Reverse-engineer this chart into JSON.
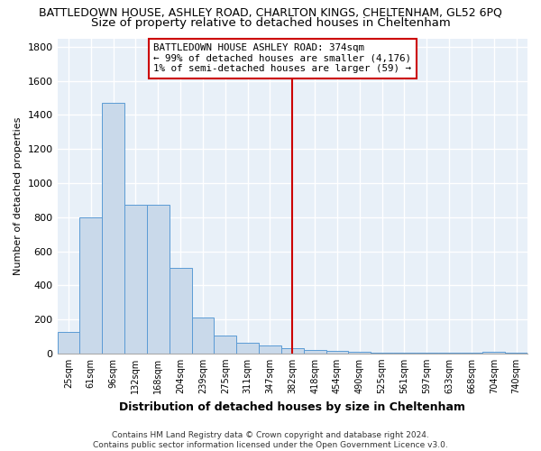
{
  "title": "BATTLEDOWN HOUSE, ASHLEY ROAD, CHARLTON KINGS, CHELTENHAM, GL52 6PQ",
  "subtitle": "Size of property relative to detached houses in Cheltenham",
  "xlabel": "Distribution of detached houses by size in Cheltenham",
  "ylabel": "Number of detached properties",
  "bar_labels": [
    "25sqm",
    "61sqm",
    "96sqm",
    "132sqm",
    "168sqm",
    "204sqm",
    "239sqm",
    "275sqm",
    "311sqm",
    "347sqm",
    "382sqm",
    "418sqm",
    "454sqm",
    "490sqm",
    "525sqm",
    "561sqm",
    "597sqm",
    "633sqm",
    "668sqm",
    "704sqm",
    "740sqm"
  ],
  "bar_values": [
    125,
    800,
    1470,
    875,
    875,
    500,
    210,
    105,
    65,
    45,
    30,
    20,
    15,
    8,
    5,
    5,
    5,
    5,
    5,
    10,
    5
  ],
  "bar_color": "#c9d9ea",
  "bar_edgecolor": "#5b9bd5",
  "annotation_text": "BATTLEDOWN HOUSE ASHLEY ROAD: 374sqm\n← 99% of detached houses are smaller (4,176)\n1% of semi-detached houses are larger (59) →",
  "annotation_box_color": "#ffffff",
  "annotation_box_edgecolor": "#cc0000",
  "vline_color": "#cc0000",
  "vline_x_index": 10,
  "ylim": [
    0,
    1850
  ],
  "yticks": [
    0,
    200,
    400,
    600,
    800,
    1000,
    1200,
    1400,
    1600,
    1800
  ],
  "background_color": "#e8f0f8",
  "grid_color": "#ffffff",
  "title_fontsize": 9,
  "subtitle_fontsize": 9.5,
  "footer_text": "Contains HM Land Registry data © Crown copyright and database right 2024.\nContains public sector information licensed under the Open Government Licence v3.0."
}
